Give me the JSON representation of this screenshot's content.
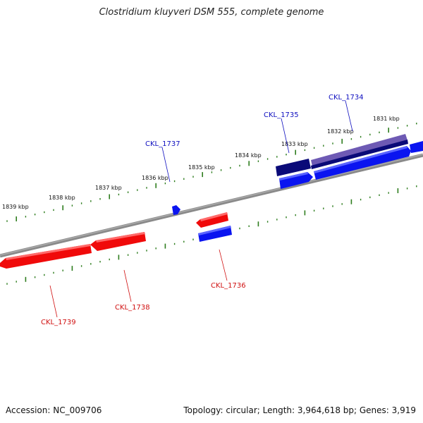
{
  "title": "Clostridium kluyveri DSM 555, complete genome",
  "accession_label": "Accession: NC_009706",
  "topology_label": "Topology: circular; Length: 3,964,618 bp; Genes: 3,919",
  "colors": {
    "backbone": "#7a7a7a",
    "tick": "#2e7d1e",
    "forward_gene": "#0a14f0",
    "forward_gene_dark": "#0a0a78",
    "forward_gene_light": "#6e5ab4",
    "reverse_gene": "#f00a0a",
    "forward_label": "#1010c0",
    "reverse_label": "#d01010"
  },
  "ruler": {
    "kbp_labels": [
      "1831 kbp",
      "1832 kbp",
      "1833 kbp",
      "1834 kbp",
      "1835 kbp",
      "1836 kbp",
      "1837 kbp",
      "1838 kbp",
      "1839 kbp"
    ]
  },
  "genes": {
    "forward": [
      {
        "id": "CKL_1734",
        "label": "CKL_1734"
      },
      {
        "id": "CKL_1735",
        "label": "CKL_1735"
      },
      {
        "id": "CKL_1737",
        "label": "CKL_1737"
      }
    ],
    "reverse": [
      {
        "id": "CKL_1736",
        "label": "CKL_1736"
      },
      {
        "id": "CKL_1738",
        "label": "CKL_1738"
      },
      {
        "id": "CKL_1739",
        "label": "CKL_1739"
      }
    ]
  }
}
